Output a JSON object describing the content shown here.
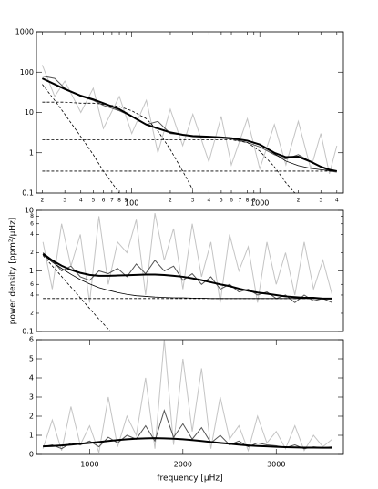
{
  "chart_data": [
    {
      "type": "line",
      "xscale": "log",
      "yscale": "log",
      "xlim": [
        18,
        4500
      ],
      "ylim": [
        0.1,
        1000
      ],
      "xticks": [
        {
          "value": 20,
          "label": "2"
        },
        {
          "value": 30,
          "label": "3"
        },
        {
          "value": 40,
          "label": "4"
        },
        {
          "value": 50,
          "label": "5"
        },
        {
          "value": 60,
          "label": "6"
        },
        {
          "value": 70,
          "label": "7"
        },
        {
          "value": 80,
          "label": "8"
        },
        {
          "value": 90,
          "label": "9"
        },
        100,
        {
          "value": 200,
          "label": "2"
        },
        {
          "value": 300,
          "label": "3"
        },
        {
          "value": 400,
          "label": "4"
        },
        {
          "value": 500,
          "label": "5"
        },
        {
          "value": 600,
          "label": "6"
        },
        {
          "value": 700,
          "label": "7"
        },
        {
          "value": 800,
          "label": "8"
        },
        {
          "value": 900,
          "label": "9"
        },
        1000,
        {
          "value": 2000,
          "label": "2"
        },
        {
          "value": 3000,
          "label": "3"
        },
        {
          "value": 4000,
          "label": "4"
        }
      ],
      "yticks": [
        0.1,
        1,
        10,
        100,
        1000
      ],
      "x": [
        20,
        25,
        30,
        40,
        50,
        60,
        80,
        100,
        130,
        160,
        200,
        250,
        300,
        400,
        500,
        600,
        800,
        1000,
        1300,
        1600,
        2000,
        2500,
        3000,
        3500,
        4000
      ],
      "series": [
        {
          "color": "#c4c4c4",
          "width": 1,
          "dashed": false,
          "values": [
            150,
            25,
            60,
            10,
            40,
            4,
            25,
            3,
            20,
            1,
            12,
            1.5,
            9,
            0.6,
            8,
            0.5,
            7,
            0.4,
            5,
            0.5,
            6,
            0.4,
            3,
            0.3,
            1.5
          ]
        },
        {
          "color": "#555555",
          "width": 1,
          "dashed": false,
          "values": [
            80,
            70,
            40,
            25,
            20,
            15,
            11,
            8,
            5,
            6,
            3,
            2.8,
            2.5,
            2.4,
            2.3,
            2.2,
            1.8,
            1.4,
            0.9,
            0.7,
            0.9,
            0.6,
            0.45,
            0.35,
            0.33
          ]
        },
        {
          "color": "#000000",
          "width": 0.8,
          "dashed": false,
          "values": [
            70,
            50,
            38,
            26,
            21,
            17,
            12,
            8,
            5,
            4,
            3.2,
            2.8,
            2.6,
            2.5,
            2.4,
            2.3,
            2.0,
            1.6,
            0.95,
            0.62,
            0.48,
            0.41,
            0.38,
            0.36,
            0.35
          ]
        },
        {
          "color": "#000000",
          "width": 0.8,
          "dashed": true,
          "values": [
            50,
            20,
            9,
            2.5,
            0.9,
            0.35,
            0.1,
            null,
            null,
            null,
            null,
            null,
            null,
            null,
            null,
            null,
            null,
            null,
            null,
            null,
            null,
            null,
            null,
            null,
            null
          ]
        },
        {
          "color": "#000000",
          "width": 0.8,
          "dashed": true,
          "values": [
            18,
            18,
            18,
            17,
            17,
            16,
            14,
            11,
            7,
            3.5,
            1.2,
            0.35,
            0.12,
            null,
            null,
            null,
            null,
            null,
            null,
            null,
            null,
            null,
            null,
            null,
            null
          ]
        },
        {
          "color": "#000000",
          "width": 0.8,
          "dashed": true,
          "values": [
            2.1,
            2.1,
            2.1,
            2.1,
            2.1,
            2.1,
            2.1,
            2.1,
            2.1,
            2.1,
            2.1,
            2.1,
            2.1,
            2.1,
            2.1,
            2.1,
            1.8,
            1.1,
            0.45,
            0.18,
            0.08,
            null,
            null,
            null,
            null
          ]
        },
        {
          "color": "#000000",
          "width": 0.8,
          "dashed": true,
          "values": [
            0.35,
            0.35,
            0.35,
            0.35,
            0.35,
            0.35,
            0.35,
            0.35,
            0.35,
            0.35,
            0.35,
            0.35,
            0.35,
            0.35,
            0.35,
            0.35,
            0.35,
            0.35,
            0.35,
            0.35,
            0.35,
            0.35,
            0.35,
            0.35,
            0.35
          ]
        },
        {
          "color": "#000000",
          "width": 2,
          "dashed": false,
          "values": [
            70,
            50,
            38,
            26,
            21,
            17,
            12,
            8,
            5,
            4,
            3.2,
            2.8,
            2.6,
            2.5,
            2.4,
            2.3,
            2.0,
            1.6,
            1.0,
            0.78,
            0.8,
            0.6,
            0.45,
            0.38,
            0.35
          ]
        }
      ]
    },
    {
      "type": "line",
      "xscale": "linear",
      "yscale": "log",
      "ylabel": "power density [ppm²/µHz]",
      "xlim": [
        430,
        3720
      ],
      "ylim": [
        0.1,
        10
      ],
      "yticks": [
        0.1,
        {
          "value": 0.2,
          "label": "2"
        },
        {
          "value": 0.4,
          "label": "4"
        },
        {
          "value": 0.6,
          "label": "6"
        },
        1,
        {
          "value": 2,
          "label": "2"
        },
        {
          "value": 4,
          "label": "4"
        },
        {
          "value": 6,
          "label": "6"
        },
        {
          "value": 8,
          "label": "8"
        },
        10
      ],
      "x": [
        500,
        600,
        700,
        800,
        900,
        1000,
        1100,
        1200,
        1300,
        1400,
        1500,
        1600,
        1700,
        1800,
        1900,
        2000,
        2100,
        2200,
        2300,
        2400,
        2500,
        2600,
        2700,
        2800,
        2900,
        3000,
        3100,
        3200,
        3300,
        3400,
        3500,
        3600
      ],
      "series": [
        {
          "color": "#c4c4c4",
          "width": 1,
          "dashed": false,
          "values": [
            3,
            0.5,
            6,
            1.2,
            4,
            0.3,
            8,
            0.6,
            3,
            2,
            7,
            0.4,
            9,
            1.5,
            5,
            0.5,
            6,
            0.8,
            3,
            0.3,
            4,
            1,
            2.5,
            0.3,
            3,
            0.6,
            2,
            0.4,
            3,
            0.5,
            1.5,
            0.4
          ]
        },
        {
          "color": "#555555",
          "width": 1,
          "dashed": false,
          "values": [
            2.0,
            1.5,
            1.0,
            1.2,
            0.8,
            0.7,
            1.0,
            0.9,
            1.1,
            0.8,
            1.3,
            0.9,
            1.5,
            1.0,
            1.2,
            0.7,
            0.9,
            0.6,
            0.8,
            0.5,
            0.6,
            0.45,
            0.5,
            0.4,
            0.45,
            0.35,
            0.4,
            0.3,
            0.4,
            0.32,
            0.35,
            0.3
          ]
        },
        {
          "color": "#000000",
          "width": 0.8,
          "dashed": false,
          "values": [
            1.85,
            1.4,
            1.1,
            0.88,
            0.72,
            0.61,
            0.53,
            0.48,
            0.44,
            0.41,
            0.39,
            0.38,
            0.37,
            0.365,
            0.36,
            0.36,
            0.355,
            0.355,
            0.35,
            0.35,
            0.35,
            0.35,
            0.35,
            0.35,
            0.35,
            0.35,
            0.35,
            0.35,
            0.35,
            0.35,
            0.35,
            0.35
          ]
        },
        {
          "color": "#000000",
          "width": 0.8,
          "dashed": true,
          "values": [
            1.8,
            1.21,
            0.81,
            0.54,
            0.36,
            0.24,
            0.16,
            0.11,
            0.073,
            null,
            null,
            null,
            null,
            null,
            null,
            null,
            null,
            null,
            null,
            null,
            null,
            null,
            null,
            null,
            null,
            null,
            null,
            null,
            null,
            null,
            null,
            null
          ]
        },
        {
          "color": "#000000",
          "width": 0.8,
          "dashed": true,
          "values": [
            0.35,
            0.35,
            0.35,
            0.35,
            0.35,
            0.35,
            0.35,
            0.35,
            0.35,
            0.35,
            0.35,
            0.35,
            0.35,
            0.35,
            0.35,
            0.35,
            0.35,
            0.35,
            0.35,
            0.35,
            0.35,
            0.35,
            0.35,
            0.35,
            0.35,
            0.35,
            0.35,
            0.35,
            0.35,
            0.35,
            0.35,
            0.35
          ]
        },
        {
          "color": "#000000",
          "width": 2,
          "dashed": false,
          "values": [
            1.92,
            1.49,
            1.22,
            1.04,
            0.93,
            0.86,
            0.83,
            0.83,
            0.84,
            0.85,
            0.86,
            0.87,
            0.87,
            0.855,
            0.83,
            0.8,
            0.755,
            0.705,
            0.65,
            0.6,
            0.56,
            0.51,
            0.47,
            0.44,
            0.42,
            0.4,
            0.38,
            0.37,
            0.36,
            0.36,
            0.35,
            0.35
          ]
        }
      ]
    },
    {
      "type": "line",
      "xscale": "linear",
      "yscale": "linear",
      "xlabel": "frequency [µHz]",
      "xlim": [
        430,
        3720
      ],
      "ylim": [
        0,
        6
      ],
      "xticks": [
        1000,
        2000,
        3000
      ],
      "yticks": [
        0,
        1,
        2,
        3,
        4,
        5,
        6
      ],
      "x": [
        500,
        600,
        700,
        800,
        900,
        1000,
        1100,
        1200,
        1300,
        1400,
        1500,
        1600,
        1700,
        1800,
        1900,
        2000,
        2100,
        2200,
        2300,
        2400,
        2500,
        2600,
        2700,
        2800,
        2900,
        3000,
        3100,
        3200,
        3300,
        3400,
        3500,
        3600
      ],
      "series": [
        {
          "color": "#c4c4c4",
          "width": 1,
          "dashed": false,
          "values": [
            0.3,
            1.8,
            0.2,
            2.5,
            0.5,
            1.5,
            0.1,
            3,
            0.4,
            2,
            1,
            4,
            0.3,
            6,
            0.5,
            5,
            1.2,
            4.5,
            0.3,
            3,
            0.8,
            1.5,
            0.2,
            2,
            0.6,
            1.2,
            0.3,
            1.5,
            0.2,
            1,
            0.4,
            0.8
          ]
        },
        {
          "color": "#555555",
          "width": 1,
          "dashed": false,
          "values": [
            0.4,
            0.5,
            0.3,
            0.6,
            0.5,
            0.7,
            0.4,
            0.9,
            0.6,
            1.0,
            0.8,
            1.5,
            0.7,
            2.3,
            0.9,
            1.6,
            0.8,
            1.4,
            0.6,
            1.0,
            0.5,
            0.7,
            0.4,
            0.6,
            0.5,
            0.45,
            0.35,
            0.5,
            0.3,
            0.4,
            0.35,
            0.4
          ]
        },
        {
          "color": "#000000",
          "width": 2,
          "dashed": false,
          "values": [
            0.42,
            0.44,
            0.47,
            0.51,
            0.56,
            0.6,
            0.65,
            0.7,
            0.75,
            0.79,
            0.82,
            0.84,
            0.85,
            0.84,
            0.82,
            0.79,
            0.75,
            0.7,
            0.65,
            0.6,
            0.56,
            0.51,
            0.47,
            0.44,
            0.42,
            0.4,
            0.38,
            0.37,
            0.36,
            0.36,
            0.35,
            0.35
          ]
        }
      ]
    }
  ]
}
